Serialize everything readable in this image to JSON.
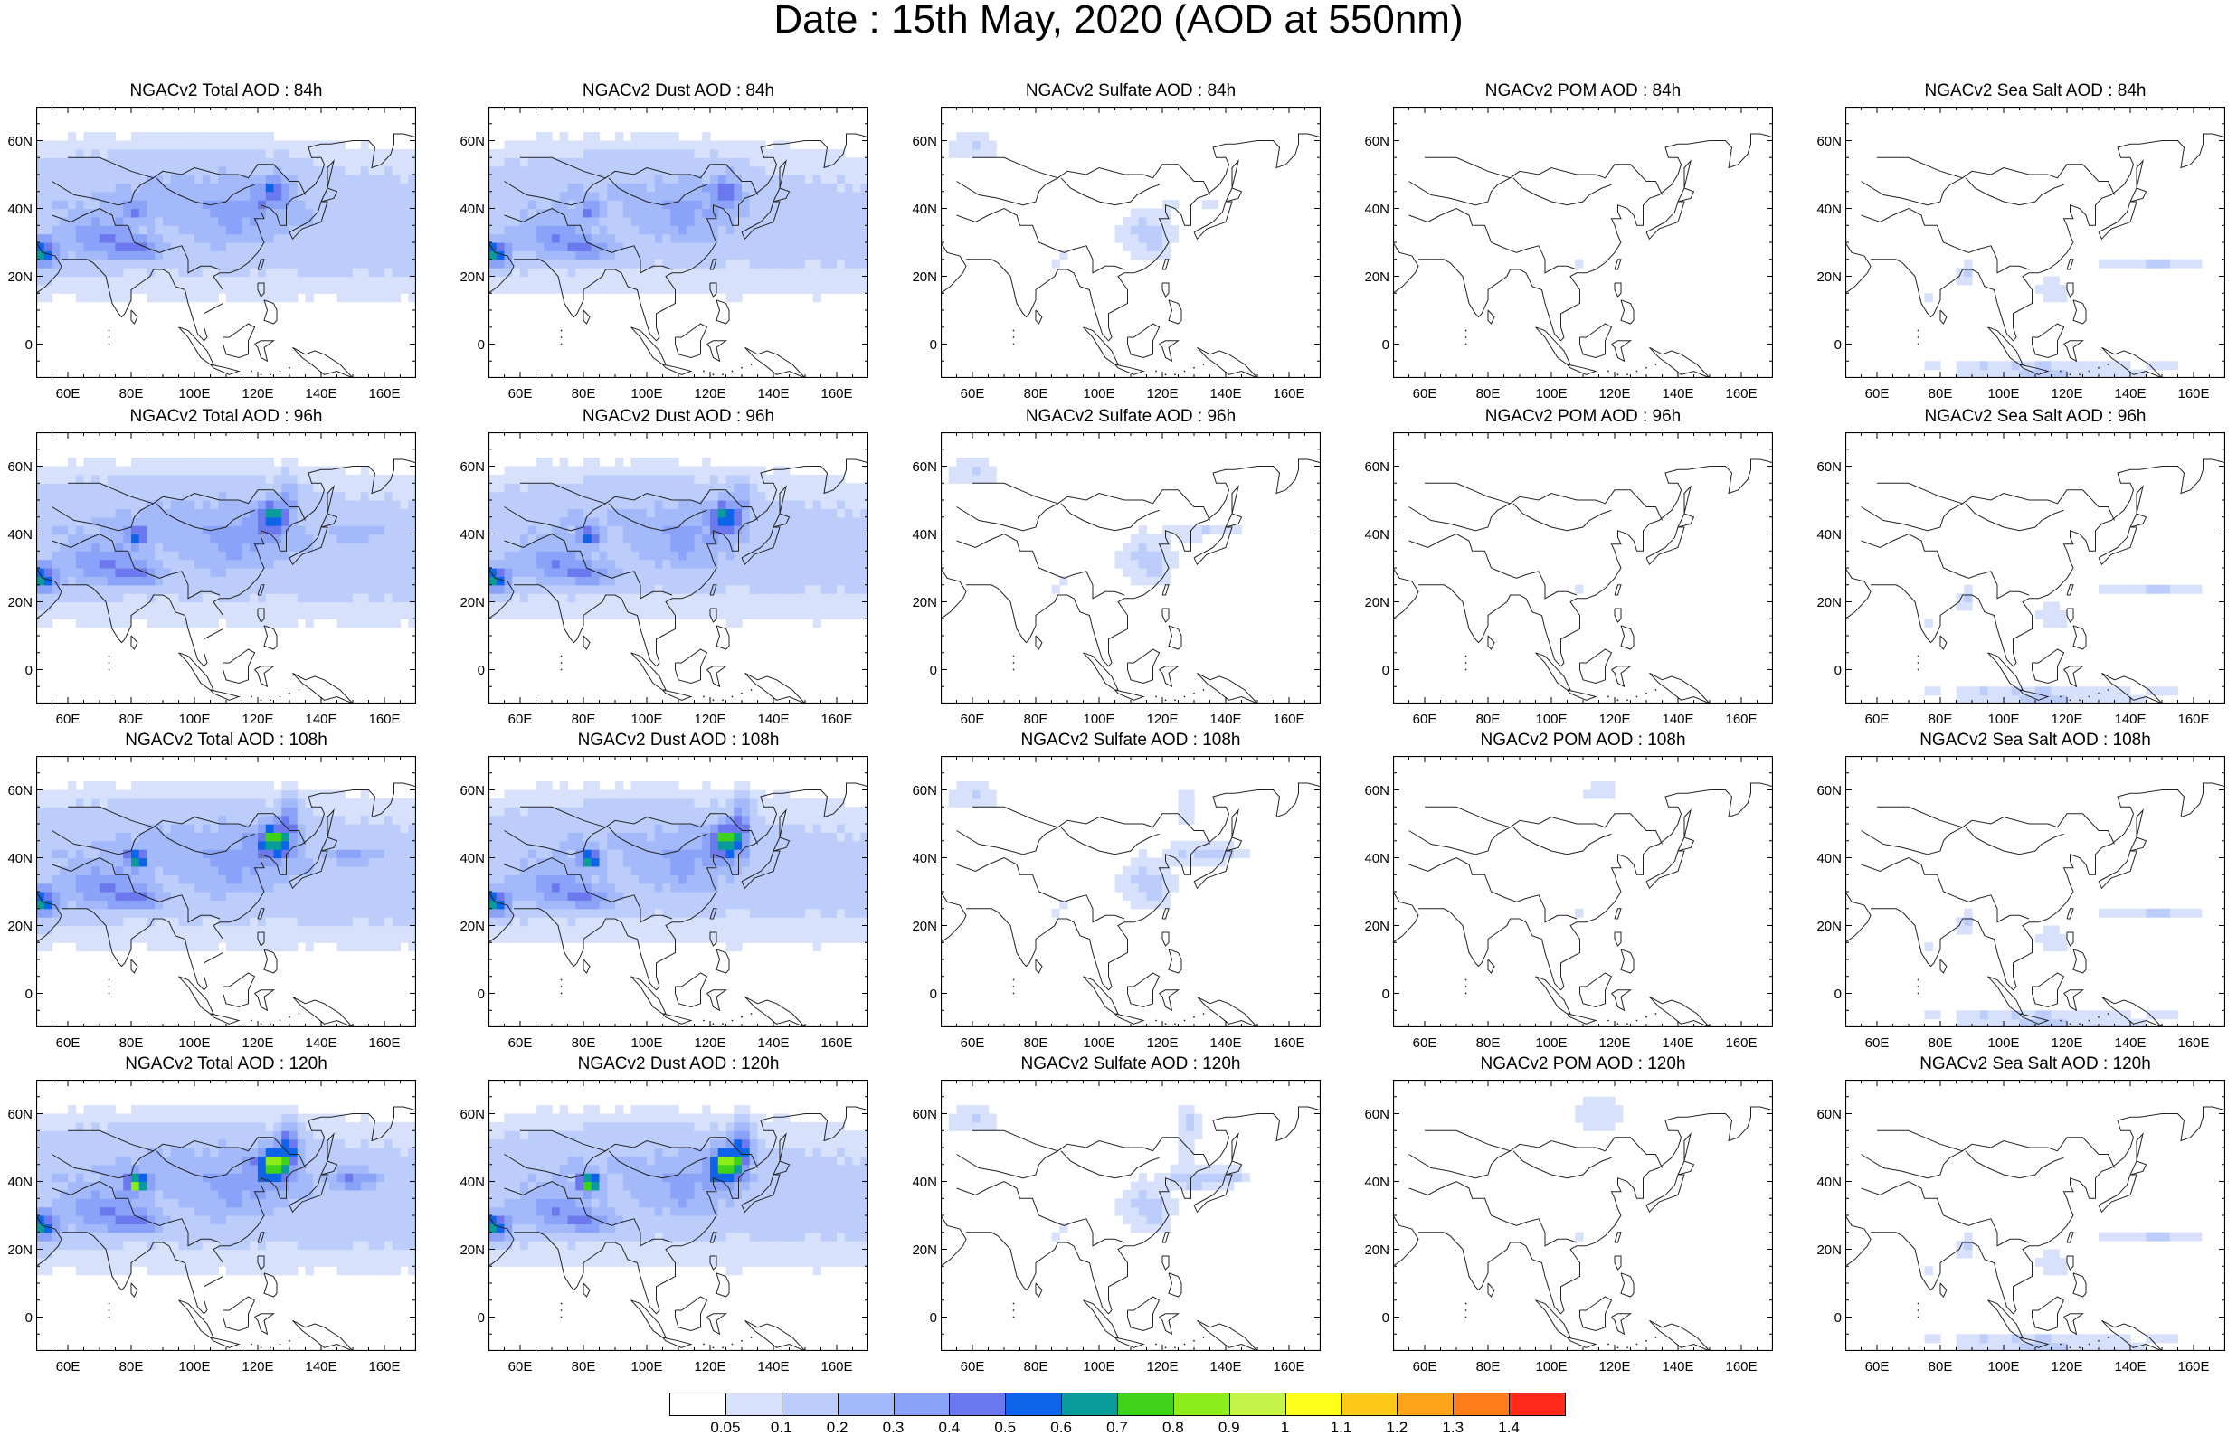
{
  "page": {
    "title": "Date : 15th May, 2020 (AOD at 550nm)"
  },
  "axes": {
    "lat_ticks": [
      "60N",
      "40N",
      "20N",
      "0"
    ],
    "lat_values": [
      60,
      40,
      20,
      0
    ],
    "lon_ticks": [
      "60E",
      "80E",
      "100E",
      "120E",
      "140E",
      "160E"
    ],
    "lon_values": [
      60,
      80,
      100,
      120,
      140,
      160
    ],
    "lon_range": [
      50,
      170
    ],
    "lat_range": [
      -10,
      70
    ]
  },
  "panels": [
    {
      "title": "NGACv2 Total AOD : 84h",
      "field": "total",
      "lead": 84
    },
    {
      "title": "NGACv2 Dust AOD : 84h",
      "field": "dust",
      "lead": 84
    },
    {
      "title": "NGACv2 Sulfate AOD : 84h",
      "field": "sulfate",
      "lead": 84
    },
    {
      "title": "NGACv2 POM AOD : 84h",
      "field": "pom",
      "lead": 84
    },
    {
      "title": "NGACv2 Sea Salt AOD : 84h",
      "field": "seasalt",
      "lead": 84
    },
    {
      "title": "NGACv2 Total AOD : 96h",
      "field": "total",
      "lead": 96
    },
    {
      "title": "NGACv2 Dust AOD : 96h",
      "field": "dust",
      "lead": 96
    },
    {
      "title": "NGACv2 Sulfate AOD : 96h",
      "field": "sulfate",
      "lead": 96
    },
    {
      "title": "NGACv2 POM AOD : 96h",
      "field": "pom",
      "lead": 96
    },
    {
      "title": "NGACv2 Sea Salt AOD : 96h",
      "field": "seasalt",
      "lead": 96
    },
    {
      "title": "NGACv2 Total AOD : 108h",
      "field": "total",
      "lead": 108
    },
    {
      "title": "NGACv2 Dust AOD : 108h",
      "field": "dust",
      "lead": 108
    },
    {
      "title": "NGACv2 Sulfate AOD : 108h",
      "field": "sulfate",
      "lead": 108
    },
    {
      "title": "NGACv2 POM AOD : 108h",
      "field": "pom",
      "lead": 108
    },
    {
      "title": "NGACv2 Sea Salt AOD : 108h",
      "field": "seasalt",
      "lead": 108
    },
    {
      "title": "NGACv2 Total AOD : 120h",
      "field": "total",
      "lead": 120
    },
    {
      "title": "NGACv2 Dust AOD : 120h",
      "field": "dust",
      "lead": 120
    },
    {
      "title": "NGACv2 Sulfate AOD : 120h",
      "field": "sulfate",
      "lead": 120
    },
    {
      "title": "NGACv2 POM AOD : 120h",
      "field": "pom",
      "lead": 120
    },
    {
      "title": "NGACv2 Sea Salt  AOD : 120h",
      "field": "seasalt",
      "lead": 120
    }
  ],
  "colorbar": {
    "labels": [
      "0.05",
      "0.1",
      "0.2",
      "0.3",
      "0.4",
      "0.5",
      "0.6",
      "0.7",
      "0.8",
      "0.9",
      "1",
      "1.1",
      "1.2",
      "1.3",
      "1.4"
    ],
    "colors": [
      "#ffffff",
      "#d7e1fc",
      "#bccdfb",
      "#a3b9fa",
      "#8aa3f8",
      "#6c79ee",
      "#0d64e8",
      "#0a9b9b",
      "#3fd21a",
      "#8ded1a",
      "#c4f349",
      "#ffff1a",
      "#ffc91a",
      "#ffa31a",
      "#ff7c1a",
      "#ff2a1a"
    ]
  },
  "map_style": {
    "coastline_color": "#222222",
    "frame_color": "#000000"
  }
}
